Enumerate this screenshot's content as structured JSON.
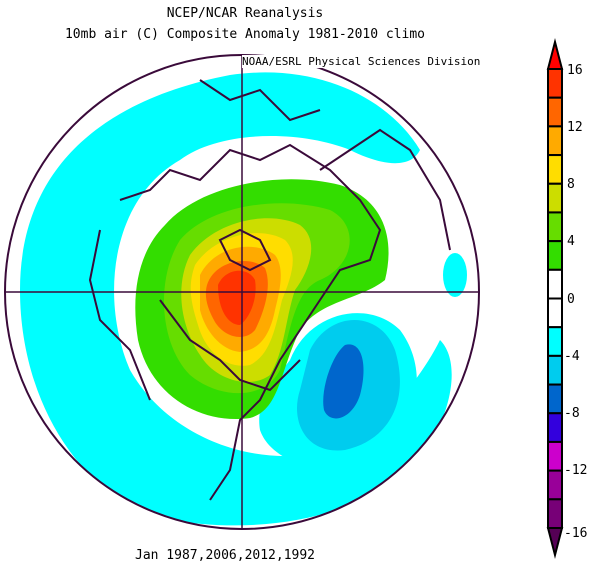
{
  "title": "NCEP/NCAR Reanalysis",
  "subtitle": "10mb air (C) Composite Anomaly 1981-2010 climo",
  "credit": "NOAA/ESRL Physical Sciences Division",
  "footer": "Jan 1987,2006,2012,1992",
  "colorbar": {
    "labels": [
      "16",
      "12",
      "8",
      "4",
      "0",
      "-4",
      "-8",
      "-12",
      "-16"
    ],
    "colors": [
      "#ff3300",
      "#ff6600",
      "#ffaa00",
      "#ffdd00",
      "#ccdd00",
      "#66dd00",
      "#33dd00",
      "#ffffff",
      "#ffffff",
      "#00ffff",
      "#00ccee",
      "#0066cc",
      "#3300dd",
      "#cc00cc",
      "#990099",
      "#770077"
    ],
    "top_arrow_color": "#ff0000",
    "bottom_arrow_color": "#550055"
  },
  "map": {
    "projection": "north polar stereographic",
    "contour_colors": {
      "cyan": "#00ffff",
      "lightblue": "#00ccee",
      "blue": "#0066cc",
      "green": "#33dd00",
      "ltgreen": "#66dd00",
      "yellowgreen": "#ccdd00",
      "yellow": "#ffdd00",
      "orange": "#ffaa00",
      "dkorange": "#ff6600",
      "red": "#ff3300",
      "coast": "#3a0a3a"
    }
  }
}
